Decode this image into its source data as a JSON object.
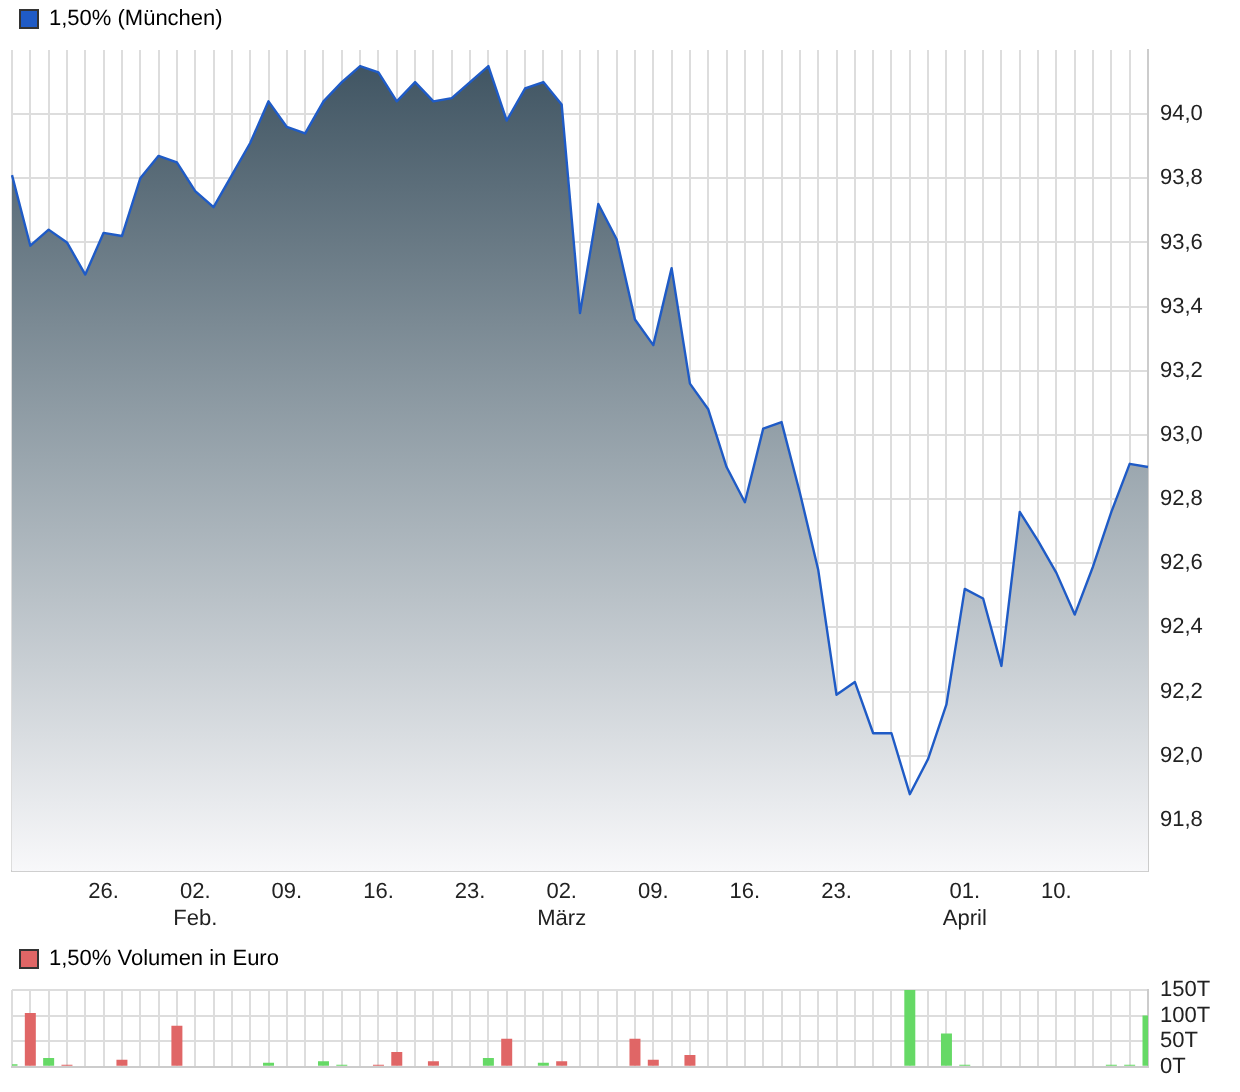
{
  "chart_data": [
    {
      "type": "area",
      "legend": "top left",
      "grid": true,
      "categories": [
        null,
        null,
        null,
        null,
        null,
        "26.",
        null,
        null,
        null,
        null,
        "02. Feb.",
        null,
        null,
        null,
        null,
        "09.",
        null,
        null,
        null,
        null,
        "16.",
        null,
        null,
        null,
        null,
        "23.",
        null,
        null,
        null,
        null,
        "02. März",
        null,
        null,
        null,
        null,
        "09.",
        null,
        null,
        null,
        null,
        "16.",
        null,
        null,
        null,
        null,
        "23.",
        null,
        null,
        null,
        null,
        null,
        null,
        "01. April",
        null,
        null,
        null,
        null,
        "10.",
        null,
        null,
        null,
        null,
        null
      ],
      "series": [
        {
          "name": "1,50% (München)",
          "color": "#1f5bc6",
          "values": [
            93.81,
            93.59,
            93.64,
            93.6,
            93.5,
            93.63,
            93.62,
            93.8,
            93.87,
            93.85,
            93.76,
            93.71,
            93.81,
            93.91,
            94.04,
            93.96,
            93.94,
            94.04,
            94.1,
            94.15,
            94.13,
            94.04,
            94.1,
            94.04,
            94.05,
            94.1,
            94.15,
            93.98,
            94.08,
            94.1,
            94.03,
            93.38,
            93.72,
            93.61,
            93.36,
            93.28,
            93.52,
            93.16,
            93.08,
            92.9,
            92.79,
            93.02,
            93.04,
            92.82,
            92.58,
            92.19,
            92.23,
            92.07,
            92.07,
            91.88,
            91.99,
            92.16,
            92.52,
            92.49,
            92.28,
            92.76,
            92.67,
            92.57,
            92.44,
            92.59,
            92.76,
            92.91,
            92.9
          ]
        }
      ],
      "ylim": [
        91.64,
        94.2
      ],
      "yticks": [
        {
          "value": 91.8,
          "label": "91,8"
        },
        {
          "value": 92.0,
          "label": "92,0"
        },
        {
          "value": 92.2,
          "label": "92,2"
        },
        {
          "value": 92.4,
          "label": "92,4"
        },
        {
          "value": 92.6,
          "label": "92,6"
        },
        {
          "value": 92.8,
          "label": "92,8"
        },
        {
          "value": 93.0,
          "label": "93,0"
        },
        {
          "value": 93.2,
          "label": "93,2"
        },
        {
          "value": 93.4,
          "label": "93,4"
        },
        {
          "value": 93.6,
          "label": "93,6"
        },
        {
          "value": 93.8,
          "label": "93,8"
        },
        {
          "value": 94.0,
          "label": "94,0"
        }
      ]
    },
    {
      "type": "bar",
      "legend": "top left",
      "grid": true,
      "tick_labels": "y",
      "categories": [
        null,
        null,
        null,
        null,
        null,
        null,
        null,
        null,
        null,
        null,
        null,
        null,
        null,
        null,
        null,
        null,
        null,
        null,
        null,
        null,
        null,
        null,
        null,
        null,
        null,
        null,
        null,
        null,
        null,
        null,
        null,
        null,
        null,
        null,
        null,
        null,
        null,
        null,
        null,
        null,
        null,
        null,
        null,
        null,
        null,
        null,
        null,
        null,
        null,
        null,
        null,
        null,
        null,
        null,
        null,
        null,
        null,
        null,
        null,
        null,
        null,
        null,
        null
      ],
      "series": [
        {
          "name": "1,50% Volumen in Euro",
          "color": "#e06666",
          "values": [
            5,
            105,
            17,
            4,
            null,
            null,
            14,
            null,
            null,
            80,
            null,
            null,
            null,
            null,
            8,
            null,
            null,
            11,
            4,
            null,
            4,
            29,
            null,
            11,
            null,
            null,
            17,
            55,
            null,
            8,
            11,
            null,
            null,
            null,
            55,
            14,
            null,
            23,
            null,
            null,
            null,
            null,
            null,
            null,
            null,
            null,
            null,
            null,
            null,
            150,
            null,
            65,
            4,
            null,
            null,
            null,
            null,
            null,
            null,
            null,
            4,
            4,
            100
          ],
          "colors": [
            "#66d966",
            "#e06666",
            "#66d966",
            "#e06666",
            null,
            null,
            "#e06666",
            null,
            null,
            "#e06666",
            null,
            null,
            null,
            null,
            "#66d966",
            null,
            null,
            "#66d966",
            "#66d966",
            null,
            "#e06666",
            "#e06666",
            null,
            "#e06666",
            null,
            null,
            "#66d966",
            "#e06666",
            null,
            "#66d966",
            "#e06666",
            null,
            null,
            null,
            "#e06666",
            "#e06666",
            null,
            "#e06666",
            null,
            null,
            null,
            null,
            null,
            null,
            null,
            null,
            null,
            null,
            null,
            "#66d966",
            null,
            "#66d966",
            "#66d966",
            null,
            null,
            null,
            null,
            null,
            null,
            null,
            "#66d966",
            "#66d966",
            "#66d966"
          ]
        }
      ],
      "ylim": [
        0,
        150
      ],
      "yticks": [
        {
          "value": 0,
          "label": "0T"
        },
        {
          "value": 50,
          "label": "50T"
        },
        {
          "value": 100,
          "label": "100T"
        },
        {
          "value": 150,
          "label": "150T"
        }
      ]
    }
  ]
}
